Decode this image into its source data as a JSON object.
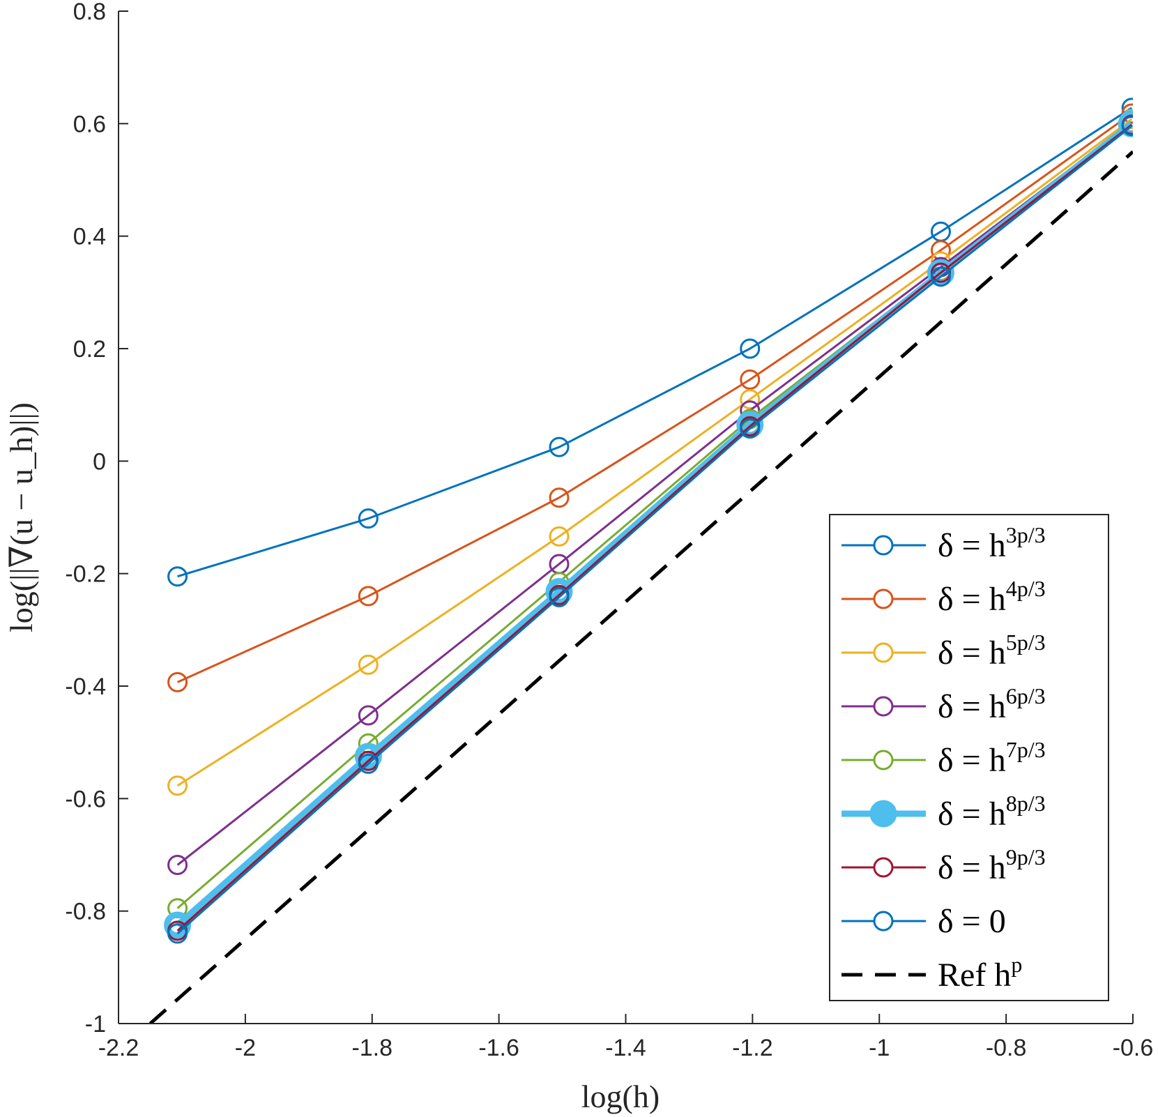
{
  "chart_data": {
    "type": "line",
    "xlabel": "log(h)",
    "ylabel": "log(||∇(u − u_h)||)",
    "xlim": [
      -2.2,
      -0.6
    ],
    "ylim": [
      -1,
      0.8
    ],
    "xticks": [
      -2.2,
      -2,
      -1.8,
      -1.6,
      -1.4,
      -1.2,
      -1,
      -0.8,
      -0.6
    ],
    "xtick_labels": [
      "-2.2",
      "-2",
      "-1.8",
      "-1.6",
      "-1.4",
      "-1.2",
      "-1",
      "-0.8",
      "-0.6"
    ],
    "yticks": [
      -1,
      -0.8,
      -0.6,
      -0.4,
      -0.2,
      0,
      0.2,
      0.4,
      0.6,
      0.8
    ],
    "ytick_labels": [
      "-1",
      "-0.8",
      "-0.6",
      "-0.4",
      "-0.2",
      "0",
      "0.2",
      "0.4",
      "0.6",
      "0.8"
    ],
    "x": [
      -2.107,
      -1.806,
      -1.505,
      -1.204,
      -0.903,
      -0.602
    ],
    "legend_location": "bottom-right",
    "series": [
      {
        "name": "δ = h^{3p/3}",
        "base": "δ = h",
        "exp": "3p/3",
        "color": "#0072BD",
        "marker": "circle",
        "width": 3,
        "values": [
          -0.205,
          -0.102,
          0.025,
          0.2,
          0.408,
          0.628
        ]
      },
      {
        "name": "δ = h^{4p/3}",
        "base": "δ = h",
        "exp": "4p/3",
        "color": "#D95319",
        "marker": "circle",
        "width": 3,
        "values": [
          -0.393,
          -0.24,
          -0.065,
          0.145,
          0.375,
          0.618
        ]
      },
      {
        "name": "δ = h^{5p/3}",
        "base": "δ = h",
        "exp": "5p/3",
        "color": "#EDB120",
        "marker": "circle",
        "width": 3,
        "values": [
          -0.577,
          -0.362,
          -0.134,
          0.11,
          0.355,
          0.608
        ]
      },
      {
        "name": "δ = h^{6p/3}",
        "base": "δ = h",
        "exp": "6p/3",
        "color": "#7E2F8E",
        "marker": "circle",
        "width": 3,
        "values": [
          -0.718,
          -0.452,
          -0.183,
          0.09,
          0.345,
          0.602
        ]
      },
      {
        "name": "δ = h^{7p/3}",
        "base": "δ = h",
        "exp": "7p/3",
        "color": "#77AC30",
        "marker": "circle",
        "width": 3,
        "values": [
          -0.795,
          -0.502,
          -0.215,
          0.075,
          0.338,
          0.6
        ]
      },
      {
        "name": "δ = h^{8p/3}",
        "base": "δ = h",
        "exp": "8p/3",
        "color": "#4DBEEE",
        "marker": "circle",
        "width": 9,
        "values": [
          -0.825,
          -0.525,
          -0.232,
          0.065,
          0.335,
          0.6
        ]
      },
      {
        "name": "δ = h^{9p/3}",
        "base": "δ = h",
        "exp": "9p/3",
        "color": "#A2142F",
        "marker": "circle",
        "width": 3,
        "values": [
          -0.835,
          -0.533,
          -0.238,
          0.062,
          0.335,
          0.598
        ]
      },
      {
        "name": "δ = 0",
        "base": "δ = 0",
        "exp": "",
        "color": "#0072BD",
        "marker": "circle",
        "width": 3,
        "values": [
          -0.84,
          -0.538,
          -0.242,
          0.058,
          0.328,
          0.596
        ]
      }
    ],
    "reference": {
      "name": "Ref h^p",
      "base": "Ref h",
      "exp": "p",
      "color": "#000000",
      "dash": true,
      "x": [
        -2.15,
        -0.6
      ],
      "values": [
        -1,
        0.55
      ]
    }
  }
}
